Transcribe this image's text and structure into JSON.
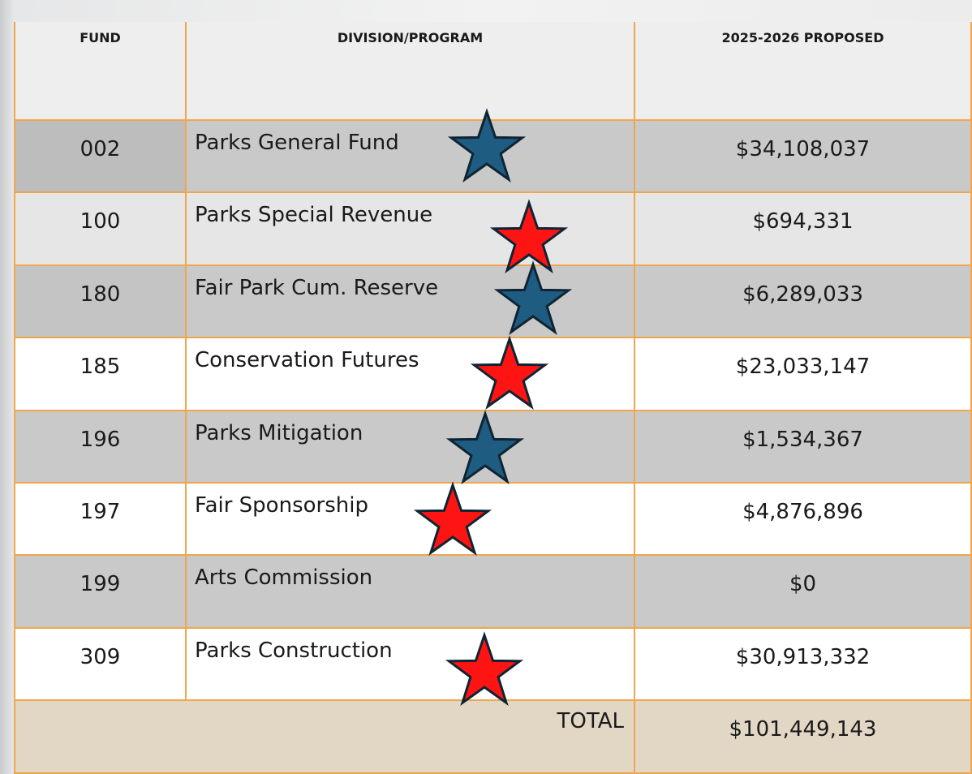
{
  "table": {
    "header": [
      "FUND",
      "DIVISION/PROGRAM",
      "2025-2026 PROPOSED"
    ],
    "rows": [
      [
        "002",
        "Parks General Fund",
        "$34,108,037"
      ],
      [
        "100",
        "Parks Special Revenue",
        "$694,331"
      ],
      [
        "180",
        "Fair Park Cum. Reserve",
        "$6,289,033"
      ],
      [
        "185",
        "Conservation Futures",
        "$23,033,147"
      ],
      [
        "196",
        "Parks Mitigation",
        "$1,534,367"
      ],
      [
        "197",
        "Fair Sponsorship",
        "$4,876,896"
      ],
      [
        "199",
        "Arts Commission",
        "$0"
      ],
      [
        "309",
        "Parks Construction",
        "$30,913,332"
      ]
    ],
    "total": {
      "label": "TOTAL",
      "value": "$101,449,143"
    }
  }
}
